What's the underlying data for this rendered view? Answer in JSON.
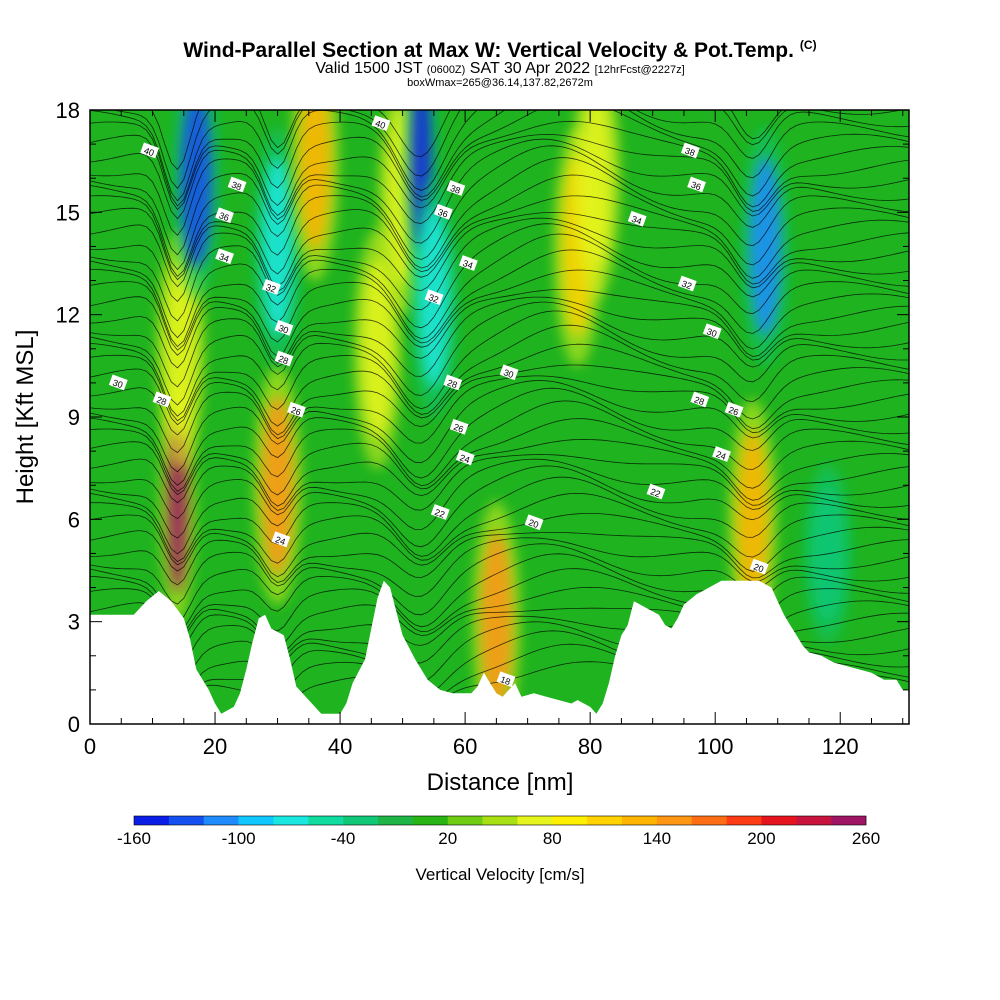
{
  "header": {
    "title": "Wind-Parallel Section at Max W: Vertical Velocity & Pot.Temp.",
    "copyright": "(C)",
    "valid_prefix": "Valid 1500 JST",
    "valid_utc": "(0600Z)",
    "valid_date": "SAT 30 Apr 2022",
    "forecast": "[12hrFcst@2227z]",
    "box_info": "boxWmax=265@36.14,137.82,2672m"
  },
  "colors": {
    "ground": "#ffffff",
    "contour": "#000000",
    "background": "#1fb31f"
  },
  "chart_data": {
    "type": "heatmap",
    "xlabel": "Distance [nm]",
    "ylabel": "Height [Kft MSL]",
    "xlim": [
      0,
      131
    ],
    "ylim": [
      0,
      18
    ],
    "x_ticks": [
      "0",
      "20",
      "40",
      "60",
      "80",
      "100",
      "120"
    ],
    "y_ticks": [
      "0",
      "3",
      "6",
      "9",
      "12",
      "15",
      "18"
    ],
    "colorbar": {
      "label": "Vertical Velocity [cm/s]",
      "tick_labels": [
        "-160",
        "-100",
        "-40",
        "20",
        "80",
        "140",
        "200",
        "260"
      ],
      "levels": [
        -160,
        -140,
        -120,
        -100,
        -80,
        -60,
        -40,
        -20,
        0,
        20,
        40,
        60,
        80,
        100,
        120,
        140,
        160,
        180,
        200,
        220,
        240,
        260
      ],
      "colors": [
        "#0a1ee8",
        "#1450f0",
        "#1e8cff",
        "#10c8ff",
        "#1ae8e0",
        "#10dca0",
        "#10c878",
        "#1eb446",
        "#28b414",
        "#6ecc14",
        "#a8e014",
        "#e6f51e",
        "#fff000",
        "#ffd200",
        "#ffb400",
        "#ff9614",
        "#ff6e14",
        "#ff3c14",
        "#e6141e",
        "#c8143c",
        "#a01464"
      ]
    },
    "terrain": [
      [
        0,
        3.2
      ],
      [
        7,
        3.2
      ],
      [
        9,
        3.6
      ],
      [
        11,
        3.9
      ],
      [
        13,
        3.6
      ],
      [
        15,
        3.1
      ],
      [
        16,
        2.5
      ],
      [
        17,
        1.6
      ],
      [
        19,
        1.0
      ],
      [
        20,
        0.6
      ],
      [
        21,
        0.3
      ],
      [
        23,
        0.5
      ],
      [
        24,
        0.9
      ],
      [
        25,
        1.6
      ],
      [
        26,
        2.4
      ],
      [
        27,
        3.1
      ],
      [
        28,
        3.2
      ],
      [
        29,
        2.8
      ],
      [
        30,
        2.7
      ],
      [
        31,
        2.6
      ],
      [
        32,
        1.9
      ],
      [
        33,
        1.1
      ],
      [
        35,
        0.7
      ],
      [
        37,
        0.3
      ],
      [
        40,
        0.3
      ],
      [
        41,
        0.6
      ],
      [
        42,
        1.2
      ],
      [
        44,
        1.9
      ],
      [
        45,
        2.8
      ],
      [
        46,
        3.7
      ],
      [
        47,
        4.2
      ],
      [
        48,
        4.0
      ],
      [
        49,
        3.3
      ],
      [
        50,
        2.6
      ],
      [
        52,
        1.9
      ],
      [
        54,
        1.3
      ],
      [
        56,
        1.0
      ],
      [
        58,
        0.9
      ],
      [
        61,
        0.9
      ],
      [
        62,
        1.1
      ],
      [
        63,
        1.5
      ],
      [
        64,
        1.2
      ],
      [
        65,
        0.9
      ],
      [
        66,
        0.8
      ],
      [
        68,
        1.2
      ],
      [
        69,
        0.8
      ],
      [
        71,
        0.9
      ],
      [
        73,
        0.8
      ],
      [
        75,
        0.7
      ],
      [
        77,
        0.6
      ],
      [
        78,
        0.7
      ],
      [
        80,
        0.5
      ],
      [
        81,
        0.3
      ],
      [
        82,
        0.6
      ],
      [
        83,
        1.2
      ],
      [
        84,
        2.0
      ],
      [
        85,
        2.6
      ],
      [
        86,
        2.9
      ],
      [
        87,
        3.6
      ],
      [
        89,
        3.4
      ],
      [
        91,
        3.2
      ],
      [
        92,
        2.9
      ],
      [
        93,
        2.8
      ],
      [
        94,
        3.1
      ],
      [
        95,
        3.5
      ],
      [
        97,
        3.8
      ],
      [
        99,
        4.0
      ],
      [
        101,
        4.2
      ],
      [
        105,
        4.2
      ],
      [
        107,
        4.2
      ],
      [
        109,
        4.0
      ],
      [
        110,
        3.6
      ],
      [
        111,
        3.2
      ],
      [
        112,
        2.9
      ],
      [
        113,
        2.6
      ],
      [
        114,
        2.3
      ],
      [
        115,
        2.1
      ],
      [
        117,
        2.0
      ],
      [
        119,
        1.8
      ],
      [
        121,
        1.7
      ],
      [
        123,
        1.6
      ],
      [
        125,
        1.5
      ],
      [
        127,
        1.3
      ],
      [
        129,
        1.3
      ],
      [
        130,
        1.0
      ],
      [
        131,
        1.0
      ]
    ],
    "velocity_features": [
      {
        "x": 14,
        "y": 6.5,
        "value": 260
      },
      {
        "x": 14.5,
        "y": 11.0,
        "value": 60
      },
      {
        "x": 17,
        "y": 16.0,
        "value": -140
      },
      {
        "x": 30,
        "y": 7.0,
        "value": 140
      },
      {
        "x": 30,
        "y": 14.0,
        "value": -80
      },
      {
        "x": 36,
        "y": 16.5,
        "value": 120
      },
      {
        "x": 46,
        "y": 11.0,
        "value": 60
      },
      {
        "x": 50,
        "y": 15.5,
        "value": 60
      },
      {
        "x": 53,
        "y": 16.5,
        "value": -160
      },
      {
        "x": 55,
        "y": 12.5,
        "value": -80
      },
      {
        "x": 65,
        "y": 3.0,
        "value": 140
      },
      {
        "x": 78,
        "y": 14.0,
        "value": 100
      },
      {
        "x": 81,
        "y": 16.0,
        "value": 60
      },
      {
        "x": 106,
        "y": 6.0,
        "value": 120
      },
      {
        "x": 108,
        "y": 14.0,
        "value": -120
      },
      {
        "x": 118,
        "y": 5.0,
        "value": -40
      }
    ],
    "theta_labels": [
      {
        "text": "40",
        "x": 9.5,
        "y": 16.8
      },
      {
        "text": "38",
        "x": 23.5,
        "y": 15.8
      },
      {
        "text": "36",
        "x": 21.5,
        "y": 14.9
      },
      {
        "text": "34",
        "x": 21.5,
        "y": 13.7
      },
      {
        "text": "32",
        "x": 29,
        "y": 12.8
      },
      {
        "text": "30",
        "x": 31,
        "y": 11.6
      },
      {
        "text": "28",
        "x": 31,
        "y": 10.7
      },
      {
        "text": "26",
        "x": 33,
        "y": 9.2
      },
      {
        "text": "24",
        "x": 30.5,
        "y": 5.4
      },
      {
        "text": "30",
        "x": 4.5,
        "y": 10.0
      },
      {
        "text": "28",
        "x": 11.5,
        "y": 9.5
      },
      {
        "text": "40",
        "x": 46.5,
        "y": 17.6
      },
      {
        "text": "38",
        "x": 58.5,
        "y": 15.7
      },
      {
        "text": "36",
        "x": 56.5,
        "y": 15.0
      },
      {
        "text": "34",
        "x": 60.5,
        "y": 13.5
      },
      {
        "text": "32",
        "x": 55,
        "y": 12.5
      },
      {
        "text": "28",
        "x": 58,
        "y": 10.0
      },
      {
        "text": "26",
        "x": 59,
        "y": 8.7
      },
      {
        "text": "24",
        "x": 60,
        "y": 7.8
      },
      {
        "text": "22",
        "x": 56,
        "y": 6.2
      },
      {
        "text": "20",
        "x": 71,
        "y": 5.9
      },
      {
        "text": "30",
        "x": 67,
        "y": 10.3
      },
      {
        "text": "18",
        "x": 66.5,
        "y": 1.3
      },
      {
        "text": "38",
        "x": 96,
        "y": 16.8
      },
      {
        "text": "36",
        "x": 97,
        "y": 15.8
      },
      {
        "text": "34",
        "x": 87.5,
        "y": 14.8
      },
      {
        "text": "32",
        "x": 95.5,
        "y": 12.9
      },
      {
        "text": "30",
        "x": 99.5,
        "y": 11.5
      },
      {
        "text": "28",
        "x": 97.5,
        "y": 9.5
      },
      {
        "text": "26",
        "x": 103,
        "y": 9.2
      },
      {
        "text": "24",
        "x": 101,
        "y": 7.9
      },
      {
        "text": "22",
        "x": 90.5,
        "y": 6.8
      },
      {
        "text": "20",
        "x": 107,
        "y": 4.6
      }
    ],
    "grid": false,
    "legend": "bottom"
  }
}
